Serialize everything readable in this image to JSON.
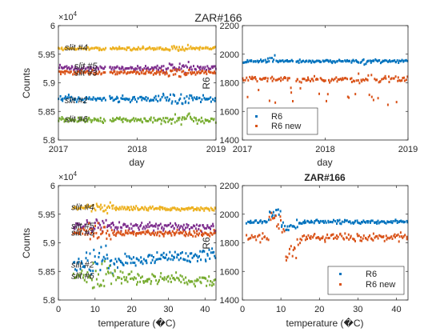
{
  "figure": {
    "title": "ZAR#166"
  },
  "colors": {
    "blue": "#0072BD",
    "orange": "#D95319",
    "yellow": "#EDB120",
    "purple": "#7E2F8E",
    "green": "#77AC30",
    "axis": "#262626"
  },
  "chart_data": [
    {
      "id": "counts-vs-day",
      "type": "scatter",
      "title": "",
      "xlabel": "day",
      "ylabel": "Counts",
      "exponent_label": "×10",
      "exponent_power": "4",
      "xlim": [
        2017,
        2019
      ],
      "ylim": [
        5.8,
        6.0
      ],
      "xticks": [
        2017,
        2018,
        2019
      ],
      "xtick_labels": [
        "2017",
        "2018",
        "2019"
      ],
      "yticks": [
        5.8,
        5.85,
        5.9,
        5.95,
        6.0
      ],
      "ytick_labels": [
        "5.8",
        "5.85",
        "5.9",
        "5.95",
        "6"
      ],
      "gap": [
        2017.6,
        2017.65
      ],
      "series": [
        {
          "name": "slit #4",
          "color": "yellow",
          "level": 5.96,
          "spread": 0.004,
          "label_at": [
            2017.08,
            5.962
          ]
        },
        {
          "name": "slit #5",
          "color": "purple",
          "level": 5.926,
          "spread": 0.007,
          "label_at": [
            2017.2,
            5.93
          ]
        },
        {
          "name": "slit #3",
          "color": "orange",
          "level": 5.918,
          "spread": 0.005,
          "label_at": [
            2017.2,
            5.918
          ]
        },
        {
          "name": "slit #2",
          "color": "blue",
          "level": 5.872,
          "spread": 0.008,
          "label_at": [
            2017.08,
            5.87
          ]
        },
        {
          "name": "slit #6",
          "color": "green",
          "level": 5.835,
          "spread": 0.008,
          "label_at": [
            2017.08,
            5.837
          ]
        }
      ]
    },
    {
      "id": "r6-vs-day",
      "type": "scatter",
      "title": "",
      "xlabel": "day",
      "ylabel": "R6",
      "xlim": [
        2017,
        2019
      ],
      "ylim": [
        1400,
        2200
      ],
      "xticks": [
        2017,
        2018,
        2019
      ],
      "xtick_labels": [
        "2017",
        "2018",
        "2019"
      ],
      "yticks": [
        1400,
        1600,
        1800,
        2000,
        2200
      ],
      "ytick_labels": [
        "1400",
        "1600",
        "1800",
        "2000",
        "2200"
      ],
      "gap": [
        2017.62,
        2017.65
      ],
      "legend": {
        "placement": "bottom-left"
      },
      "series": [
        {
          "name": "R6",
          "color": "blue",
          "level": 1950,
          "spread": 15
        },
        {
          "name": "R6 new",
          "color": "orange",
          "level": 1825,
          "spread": 30
        }
      ]
    },
    {
      "id": "counts-vs-temperature",
      "type": "scatter",
      "title": "",
      "xlabel": "temperature (�C)",
      "ylabel": "Counts",
      "exponent_label": "×10",
      "exponent_power": "4",
      "xlim": [
        0,
        43
      ],
      "ylim": [
        5.8,
        6.0
      ],
      "xticks": [
        0,
        10,
        20,
        30,
        40
      ],
      "xtick_labels": [
        "0",
        "10",
        "20",
        "30",
        "40"
      ],
      "yticks": [
        5.8,
        5.85,
        5.9,
        5.95,
        6.0
      ],
      "ytick_labels": [
        "5.8",
        "5.85",
        "5.9",
        "5.95",
        "6"
      ],
      "temp_range": [
        4,
        43
      ],
      "series": [
        {
          "name": "slit #4",
          "color": "yellow",
          "level": 5.962,
          "slope": -8e-05,
          "spread": 0.005,
          "label_at": [
            3.5,
            5.963
          ]
        },
        {
          "name": "slit #5",
          "color": "purple",
          "level": 5.93,
          "slope": -8e-05,
          "spread": 0.01,
          "label_at": [
            3.5,
            5.93
          ]
        },
        {
          "name": "slit #3",
          "color": "orange",
          "level": 5.918,
          "slope": -4e-05,
          "spread": 0.008,
          "label_at": [
            3.5,
            5.918
          ]
        },
        {
          "name": "slit #2",
          "color": "blue",
          "level": 5.862,
          "slope": 0.0004,
          "spread": 0.016,
          "label_at": [
            3.5,
            5.862
          ]
        },
        {
          "name": "slit #6",
          "color": "green",
          "level": 5.845,
          "slope": -0.0003,
          "spread": 0.014,
          "label_at": [
            3.5,
            5.843
          ]
        }
      ]
    },
    {
      "id": "r6-vs-temperature",
      "type": "scatter",
      "title": "ZAR#166",
      "xlabel": "temperature (�C)",
      "ylabel": "R6",
      "xlim": [
        0,
        43
      ],
      "ylim": [
        1400,
        2200
      ],
      "xticks": [
        0,
        10,
        20,
        30,
        40
      ],
      "xtick_labels": [
        "0",
        "10",
        "20",
        "30",
        "40"
      ],
      "yticks": [
        1400,
        1600,
        1800,
        2000,
        2200
      ],
      "ytick_labels": [
        "1400",
        "1600",
        "1800",
        "2000",
        "2200"
      ],
      "temp_range": [
        1,
        43
      ],
      "legend": {
        "placement": "bottom-right"
      },
      "series": [
        {
          "name": "R6",
          "color": "blue",
          "level": 1945,
          "spread": 20
        },
        {
          "name": "R6 new",
          "color": "orange",
          "level": 1840,
          "spread": 40
        }
      ]
    }
  ]
}
